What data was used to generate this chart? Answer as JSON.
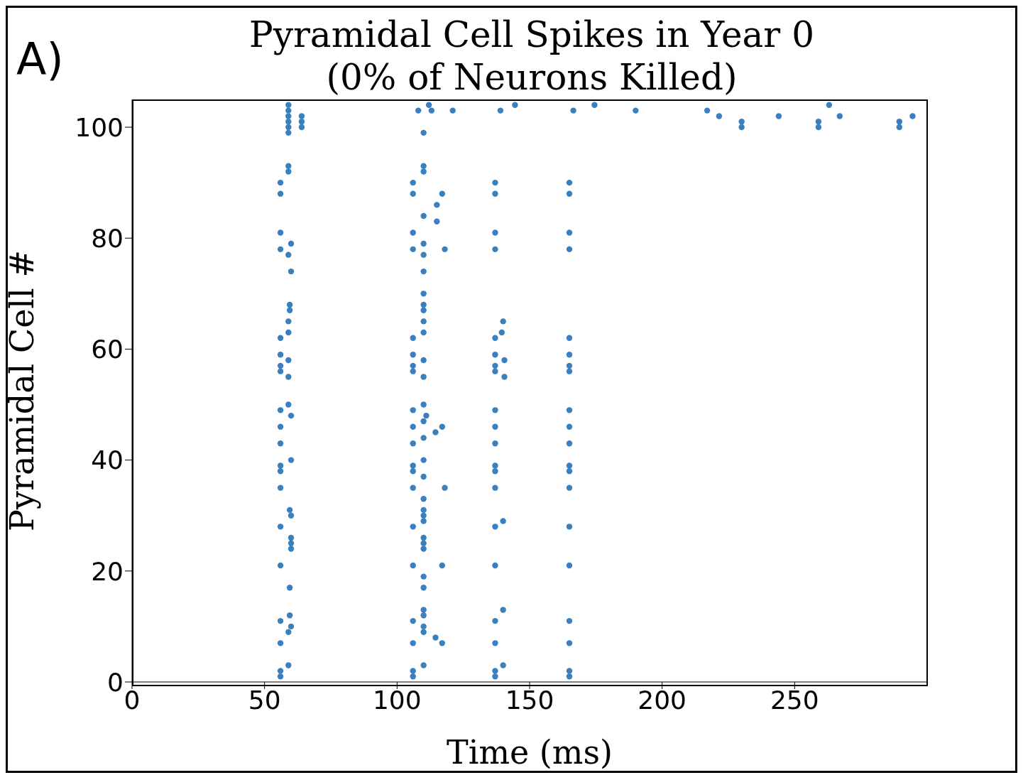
{
  "chart_data": {
    "type": "scatter",
    "title": "Pyramidal Cell Spikes in Year 0",
    "subtitle": "(0% of Neurons Killed)",
    "xlabel": "Time (ms)",
    "ylabel": "Pyramidal Cell #",
    "annotations": [
      "A)"
    ],
    "marker": "circle",
    "grid": false,
    "legend": false,
    "xlim": [
      0,
      300
    ],
    "xticks": [
      0,
      50,
      100,
      150,
      200,
      250
    ],
    "ylim": [
      0,
      105
    ],
    "yticks": [
      0,
      20,
      40,
      60,
      80,
      100
    ],
    "series": [
      {
        "color": "#3a80bf",
        "x": [
          56,
          56,
          56,
          56,
          56,
          56,
          56,
          56,
          56,
          56,
          56,
          56,
          56,
          56,
          56,
          56,
          56,
          56,
          56,
          56,
          59,
          59,
          59,
          59,
          59,
          59,
          59,
          59,
          60,
          59,
          60,
          59.5,
          59.5,
          59,
          59,
          59,
          59,
          59,
          60,
          60,
          59.5,
          60,
          60,
          60,
          60,
          59.5,
          59.5,
          60,
          59,
          59,
          64,
          64,
          64,
          106,
          106,
          106,
          106,
          106,
          106,
          106,
          106,
          106,
          106,
          106,
          106,
          106,
          106,
          106,
          106,
          106,
          106,
          106,
          106,
          108,
          110,
          110,
          110,
          110,
          110,
          110,
          110,
          110,
          110,
          110,
          110,
          110,
          110,
          110,
          110,
          111,
          110,
          110,
          110,
          110,
          110,
          110,
          110,
          110,
          110,
          110,
          110,
          110,
          110,
          110,
          110,
          110,
          110,
          110,
          112,
          113,
          121,
          117,
          115,
          115,
          118,
          117,
          114.5,
          118,
          117,
          114.5,
          117,
          137,
          137,
          137,
          137,
          137,
          137,
          137,
          137,
          137,
          137,
          137,
          137,
          137,
          137,
          137,
          137,
          137,
          137,
          137,
          137,
          139,
          144.5,
          140,
          139.5,
          140.5,
          140.5,
          140,
          140,
          140,
          165,
          165,
          165,
          165,
          165,
          165,
          165,
          165,
          165,
          165,
          165,
          165,
          165,
          165,
          165,
          165,
          165,
          165,
          165,
          165,
          166.5,
          174.5,
          190,
          217,
          221.5,
          230,
          230,
          244,
          259,
          259,
          263,
          267,
          289.5,
          289.5,
          294.5
        ],
        "values": [
          90,
          88,
          81,
          78,
          62,
          59,
          57,
          56,
          49,
          46,
          43,
          39,
          38,
          35,
          28,
          21,
          11,
          7,
          2,
          1,
          104,
          103,
          102,
          101,
          100,
          99,
          93,
          92,
          79,
          77,
          74,
          68,
          67,
          65,
          63,
          58,
          55,
          50,
          48,
          40,
          31,
          30,
          26,
          25,
          24,
          17,
          12,
          10,
          9,
          3,
          102,
          101,
          100,
          90,
          88,
          81,
          78,
          62,
          59,
          57,
          56,
          49,
          46,
          43,
          39,
          38,
          35,
          28,
          21,
          11,
          7,
          2,
          1,
          103,
          99,
          93,
          92,
          84,
          79,
          77,
          74,
          70,
          68,
          67,
          65,
          63,
          58,
          55,
          50,
          48,
          47,
          44,
          40,
          37,
          33,
          31,
          30,
          29,
          26,
          25,
          24,
          19,
          17,
          13,
          12,
          10,
          9,
          3,
          104,
          103,
          103,
          88,
          86,
          83,
          78,
          46,
          45,
          35,
          21,
          8,
          7,
          90,
          88,
          81,
          78,
          62,
          59,
          57,
          56,
          49,
          46,
          43,
          39,
          38,
          35,
          28,
          21,
          11,
          7,
          2,
          1,
          103,
          104,
          65,
          63,
          58,
          55,
          29,
          13,
          3,
          90,
          88,
          81,
          78,
          62,
          59,
          57,
          56,
          49,
          46,
          43,
          39,
          38,
          35,
          28,
          21,
          11,
          7,
          2,
          1,
          103,
          104,
          103,
          103,
          102,
          101,
          100,
          102,
          101,
          100,
          104,
          102,
          101,
          100,
          102
        ]
      }
    ]
  }
}
